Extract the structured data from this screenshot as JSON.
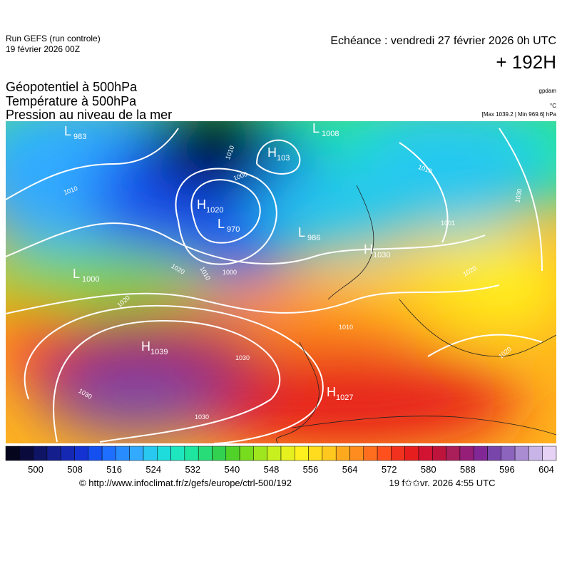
{
  "header": {
    "run": "Run GEFS (run controle)",
    "date": "19 février 2026 00Z",
    "echeance": "Echéance : vendredi 27 février 2026 0h UTC",
    "lead": "+ 192H"
  },
  "fields": [
    "Géopotentiel à 500hPa",
    "Température à 500hPa",
    "Pression au niveau de la mer"
  ],
  "units": [
    "gpdam",
    "°C"
  ],
  "range": "[Max 1039.2 | Min 969.6] hPa",
  "centers": [
    {
      "type": "L",
      "value": "983"
    },
    {
      "type": "H",
      "value": "103"
    },
    {
      "type": "L",
      "value": "1008"
    },
    {
      "type": "H",
      "value": "1020"
    },
    {
      "type": "L",
      "value": "970"
    },
    {
      "type": "L",
      "value": "986"
    },
    {
      "type": "H",
      "value": "1030"
    },
    {
      "type": "L",
      "value": "1000"
    },
    {
      "type": "H",
      "value": "1039"
    },
    {
      "type": "H",
      "value": "1027"
    }
  ],
  "isobar_labels": [
    "1010",
    "1010",
    "1000",
    "1001",
    "1010",
    "1030",
    "1020",
    "1010",
    "1000",
    "1020",
    "1030",
    "1030",
    "1030",
    "1020",
    "1020",
    "1010"
  ],
  "colorbar": {
    "ticks": [
      500,
      508,
      516,
      524,
      532,
      540,
      548,
      556,
      564,
      572,
      580,
      588,
      596,
      604
    ],
    "colors": [
      "#05051e",
      "#0a0a3c",
      "#0f1464",
      "#141e8c",
      "#1428b4",
      "#1432d2",
      "#1450f0",
      "#1e6eff",
      "#288cff",
      "#32aaff",
      "#28c8f0",
      "#1edcdc",
      "#1ee6be",
      "#1ee6a0",
      "#28dc78",
      "#32d250",
      "#50d228",
      "#78dc1e",
      "#a0e61e",
      "#c8f01e",
      "#e6f01e",
      "#fff01e",
      "#ffdc1e",
      "#ffc81e",
      "#ffaa1e",
      "#ff8c1e",
      "#ff6e1e",
      "#ff501e",
      "#f0321e",
      "#e61e1e",
      "#d21432",
      "#be143c",
      "#aa1e5a",
      "#961e78",
      "#822896",
      "#7846aa",
      "#8c64be",
      "#aa8cd2",
      "#c8b4e6",
      "#e6d2f5"
    ]
  },
  "footer": {
    "url": "© http://www.infoclimat.fr/z/gefs/europe/ctrl-500/192",
    "time": "19 f✩✩vr. 2026  4:55 UTC"
  }
}
